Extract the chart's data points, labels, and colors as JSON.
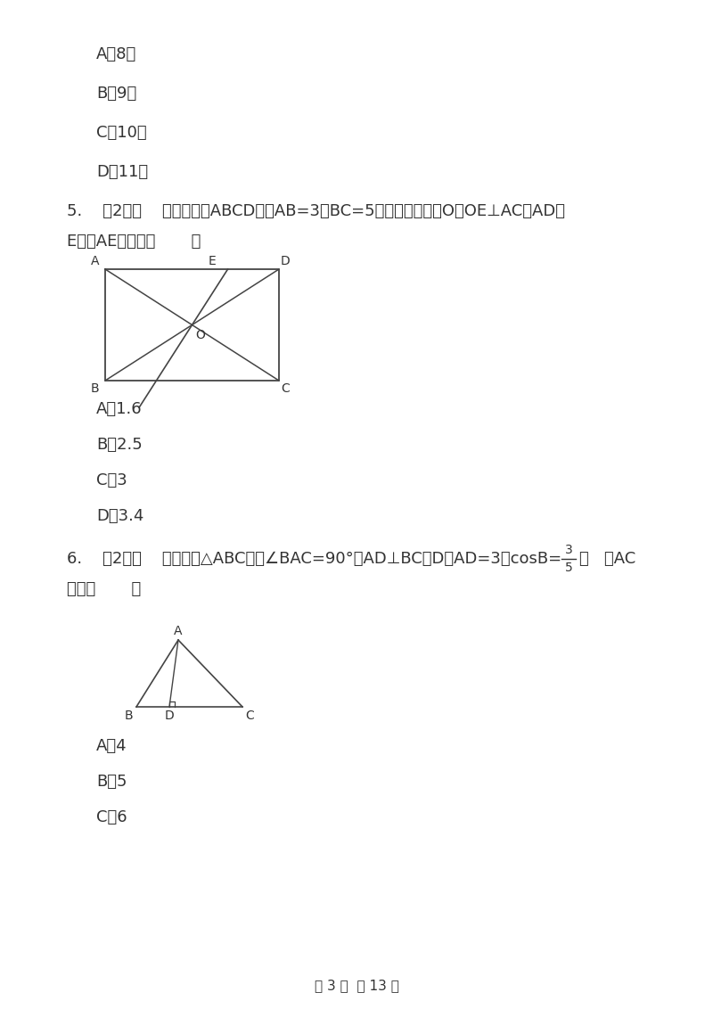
{
  "bg_color": "#ffffff",
  "text_color": "#333333",
  "options_q4": [
    "A．8米",
    "B．9米",
    "C．10米",
    "D．11米"
  ],
  "q5_line1": "5.    （2分）    如图，矩形ABCD中，AB=3，BC=5．过对角线交点O作OE⊥AC交AD于",
  "q5_line2": "E，则AE的长是（       ）",
  "options_q5": [
    "A．1.6",
    "B．2.5",
    "C．3",
    "D．3.4"
  ],
  "q6_line1": "6.    （2分）    如图，在△ABC中，∠BAC=90°，AD⊥BC于D，AD=3，cosB=",
  "q6_frac_num": "3",
  "q6_frac_den": "5",
  "q6_after_frac": "，   则AC",
  "q6_line2": "等于（       ）",
  "options_q6": [
    "A．4",
    "B．5",
    "C．6"
  ],
  "footer": "第 3 页  共 13 页"
}
